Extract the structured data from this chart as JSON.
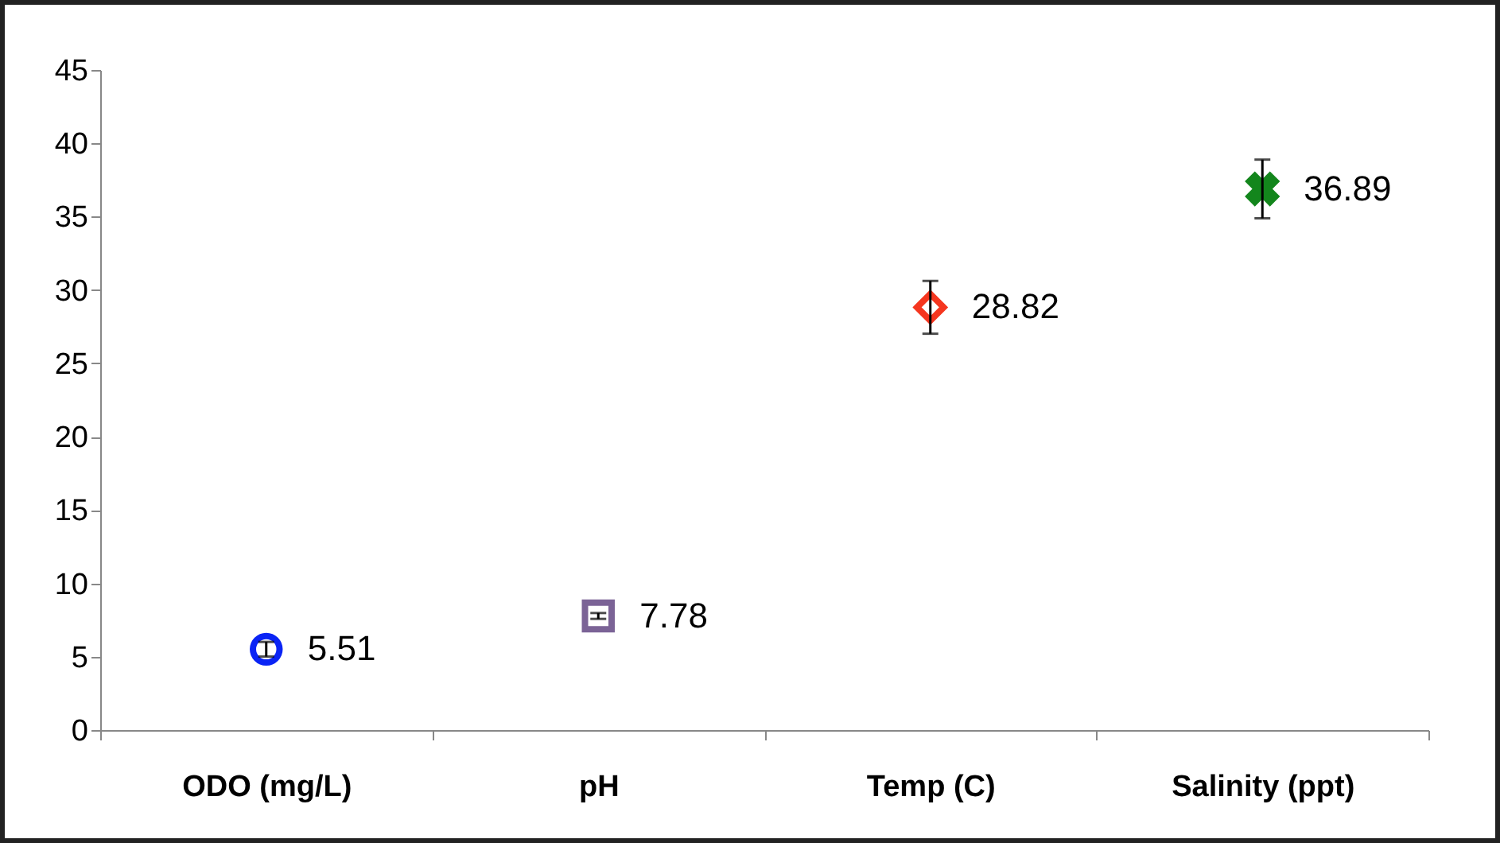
{
  "chart_data": {
    "type": "scatter",
    "categories": [
      "ODO (mg/L)",
      "pH",
      "Temp  (C)",
      "Salinity (ppt)"
    ],
    "series": [
      {
        "color": "#0a24f5",
        "marker": "circle",
        "values": [
          5.51,
          null,
          null,
          null
        ],
        "errors": [
          0.5,
          null,
          null,
          null
        ]
      },
      {
        "color": "#7b6396",
        "marker": "square",
        "values": [
          null,
          7.78,
          null,
          null
        ],
        "errors": [
          null,
          0.2,
          null,
          null
        ]
      },
      {
        "color": "#f5361f",
        "marker": "diamond",
        "values": [
          null,
          null,
          28.82,
          null
        ],
        "errors": [
          null,
          null,
          1.8,
          null
        ]
      },
      {
        "color": "#13861c",
        "marker": "cross",
        "values": [
          null,
          null,
          null,
          36.89
        ],
        "errors": [
          null,
          null,
          null,
          2
        ]
      }
    ],
    "ylim": [
      0,
      45
    ],
    "yticks": [
      0,
      5,
      10,
      15,
      20,
      25,
      30,
      35,
      40,
      45
    ],
    "grid": false,
    "data_labels": true
  }
}
